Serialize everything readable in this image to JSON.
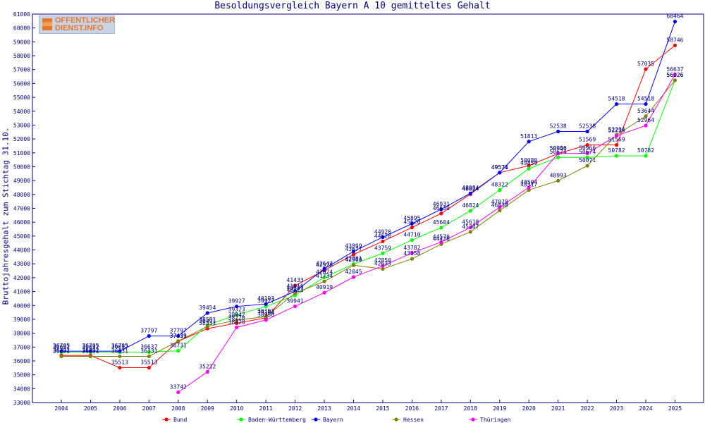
{
  "chart_data": {
    "type": "line",
    "title": "Besoldungsvergleich Bayern A 10 gemitteltes Gehalt",
    "ylabel": "Bruttojahresgehalt zum Stichtag 31.10.",
    "xlabel": "",
    "ylim": [
      33000,
      61000
    ],
    "ytick_step": 1000,
    "grid": false,
    "legend": "bottom",
    "x": [
      "2004",
      "2005",
      "2006",
      "2007",
      "2008",
      "2009",
      "2010",
      "2011",
      "2012",
      "2013",
      "2014",
      "2015",
      "2016",
      "2017",
      "2018",
      "2019",
      "2020",
      "2021",
      "2022",
      "2023",
      "2024",
      "2025"
    ],
    "series": [
      {
        "name": "Bund",
        "color": "#ff0000",
        "values": [
          36392,
          36392,
          35513,
          35513,
          37419,
          38331,
          38720,
          39104,
          41433,
          42528,
          43677,
          44620,
          45620,
          46630,
          48024,
          49571,
          50080,
          50946,
          51569,
          51569,
          57035,
          58746
        ]
      },
      {
        "name": "Baden-Württemberg",
        "color": "#00ff00",
        "values": [
          36637,
          36637,
          36637,
          36637,
          36731,
          38581,
          39323,
          39927,
          40723,
          42024,
          42981,
          43759,
          44710,
          45604,
          46824,
          48322,
          49859,
          50674,
          50674,
          50782,
          50782,
          56226
        ]
      },
      {
        "name": "Bayern",
        "color": "#0000ff",
        "values": [
          36705,
          36705,
          36705,
          37797,
          37797,
          39454,
          39927,
          40103,
          41016,
          42642,
          43899,
          44920,
          45895,
          46931,
          48084,
          49574,
          51813,
          52538,
          52538,
          54518,
          54518,
          60464
        ]
      },
      {
        "name": "Hessen",
        "color": "#808000",
        "values": [
          36331,
          36331,
          36331,
          36331,
          37431,
          38491,
          38942,
          39193,
          40887,
          41734,
          42900,
          42633,
          43358,
          44420,
          45307,
          46838,
          48317,
          48993,
          50071,
          52294,
          53644,
          56226
        ]
      },
      {
        "name": "Thüringen",
        "color": "#ff00ff",
        "values": [
          null,
          null,
          null,
          null,
          33742,
          35212,
          38420,
          38950,
          39941,
          40919,
          42045,
          42850,
          43782,
          44570,
          45618,
          47078,
          48504,
          50950,
          50966,
          52235,
          52964,
          56637
        ]
      }
    ]
  },
  "logo": {
    "line1": "OFFENTLICHER",
    "line2": "DIENST.INFO"
  }
}
